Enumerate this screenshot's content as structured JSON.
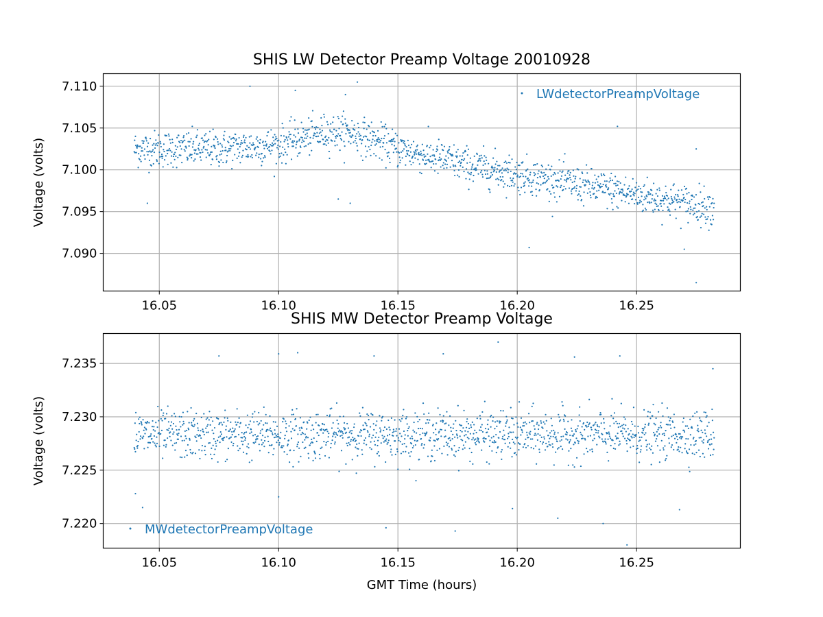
{
  "colors": {
    "series": "#1f77b4",
    "grid": "#b0b0b0",
    "axes": "#000000",
    "background": "#ffffff"
  },
  "chart_data": [
    {
      "type": "scatter",
      "title": "SHIS LW Detector Preamp Voltage 20010928",
      "xlabel": "",
      "ylabel": "Voltage (volts)",
      "xlim": [
        16.0265,
        16.2935
      ],
      "ylim": [
        7.0855,
        7.1115
      ],
      "xticks": [
        16.05,
        16.1,
        16.15,
        16.2,
        16.25
      ],
      "xtick_labels": [
        "16.05",
        "16.10",
        "16.15",
        "16.20",
        "16.25"
      ],
      "yticks": [
        7.09,
        7.095,
        7.1,
        7.105,
        7.11
      ],
      "ytick_labels": [
        "7.090",
        "7.095",
        "7.100",
        "7.105",
        "7.110"
      ],
      "grid": true,
      "legend": {
        "position": "upper right",
        "entries": [
          "LWdetectorPreampVoltage"
        ]
      },
      "series": [
        {
          "name": "LWdetectorPreampVoltage",
          "marker": "point",
          "x_start": 16.0395,
          "x_end": 16.2825,
          "count": 1450,
          "trend": [
            [
              16.0395,
              7.1025
            ],
            [
              16.075,
              7.1025
            ],
            [
              16.1,
              7.103
            ],
            [
              16.12,
              7.1045
            ],
            [
              16.13,
              7.1045
            ],
            [
              16.15,
              7.1025
            ],
            [
              16.18,
              7.1005
            ],
            [
              16.2,
              7.0995
            ],
            [
              16.22,
              7.0985
            ],
            [
              16.25,
              7.097
            ],
            [
              16.2825,
              7.0955
            ]
          ],
          "spread": 0.0018,
          "outliers": [
            [
              16.088,
              7.11
            ],
            [
              16.107,
              7.1095
            ],
            [
              16.133,
              7.1105
            ],
            [
              16.128,
              7.109
            ],
            [
              16.125,
              7.0965
            ],
            [
              16.13,
              7.096
            ],
            [
              16.045,
              7.096
            ],
            [
              16.205,
              7.0907
            ],
            [
              16.242,
              7.1052
            ],
            [
              16.275,
              7.0865
            ],
            [
              16.275,
              7.1025
            ],
            [
              16.27,
              7.0905
            ]
          ]
        }
      ]
    },
    {
      "type": "scatter",
      "title": "SHIS MW Detector Preamp Voltage",
      "xlabel": "GMT Time (hours)",
      "ylabel": "Voltage (volts)",
      "xlim": [
        16.0265,
        16.2935
      ],
      "ylim": [
        7.2177,
        7.2378
      ],
      "xticks": [
        16.05,
        16.1,
        16.15,
        16.2,
        16.25
      ],
      "xtick_labels": [
        "16.05",
        "16.10",
        "16.15",
        "16.20",
        "16.25"
      ],
      "yticks": [
        7.22,
        7.225,
        7.23,
        7.235
      ],
      "ytick_labels": [
        "7.220",
        "7.225",
        "7.230",
        "7.235"
      ],
      "grid": true,
      "legend": {
        "position": "lower left",
        "entries": [
          "MWdetectorPreampVoltage"
        ]
      },
      "series": [
        {
          "name": "MWdetectorPreampVoltage",
          "marker": "point",
          "x_start": 16.0395,
          "x_end": 16.2825,
          "count": 1450,
          "trend": [
            [
              16.0395,
              7.2283
            ],
            [
              16.2825,
              7.2283
            ]
          ],
          "spread": 0.0019,
          "outliers": [
            [
              16.075,
              7.2357
            ],
            [
              16.1,
              7.2359
            ],
            [
              16.108,
              7.236
            ],
            [
              16.14,
              7.2357
            ],
            [
              16.169,
              7.2359
            ],
            [
              16.192,
              7.237
            ],
            [
              16.224,
              7.2356
            ],
            [
              16.243,
              7.2357
            ],
            [
              16.04,
              7.2228
            ],
            [
              16.043,
              7.2215
            ],
            [
              16.1,
              7.2225
            ],
            [
              16.145,
              7.2196
            ],
            [
              16.174,
              7.2193
            ],
            [
              16.198,
              7.2214
            ],
            [
              16.217,
              7.2205
            ],
            [
              16.236,
              7.22
            ],
            [
              16.246,
              7.218
            ],
            [
              16.268,
              7.2213
            ],
            [
              16.282,
              7.2345
            ]
          ]
        }
      ]
    }
  ]
}
